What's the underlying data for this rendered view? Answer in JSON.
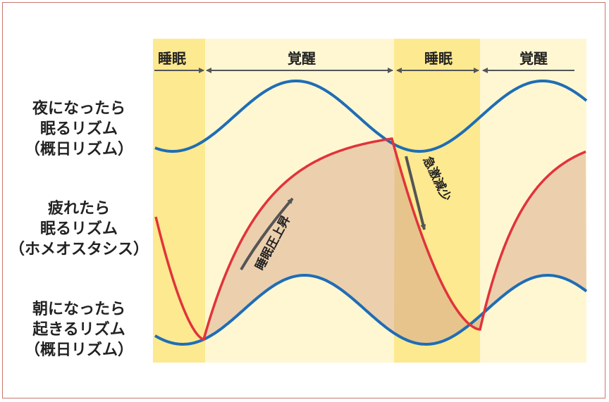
{
  "phase_labels": [
    "睡眠",
    "覚醒",
    "睡眠",
    "覚醒"
  ],
  "left_labels": {
    "night": [
      "夜になったら",
      "眠るリズム",
      "（概日リズム）"
    ],
    "fatigue": [
      "疲れたら",
      "眠るリズム",
      "（ホメオスタシス）"
    ],
    "morning": [
      "朝になったら",
      "起きるリズム",
      "（概日リズム）"
    ]
  },
  "annotations": {
    "rise": "睡眠圧上昇",
    "drop": "急激減少"
  },
  "colors": {
    "sleep_band": "#fde98f",
    "wake_band": "#fef7d2",
    "circadian_line": "#1f6db5",
    "pressure_line": "#e1333b",
    "pressure_fill": "#e9c9a8",
    "arrow": "#555555",
    "frame": "#c7776e"
  }
}
